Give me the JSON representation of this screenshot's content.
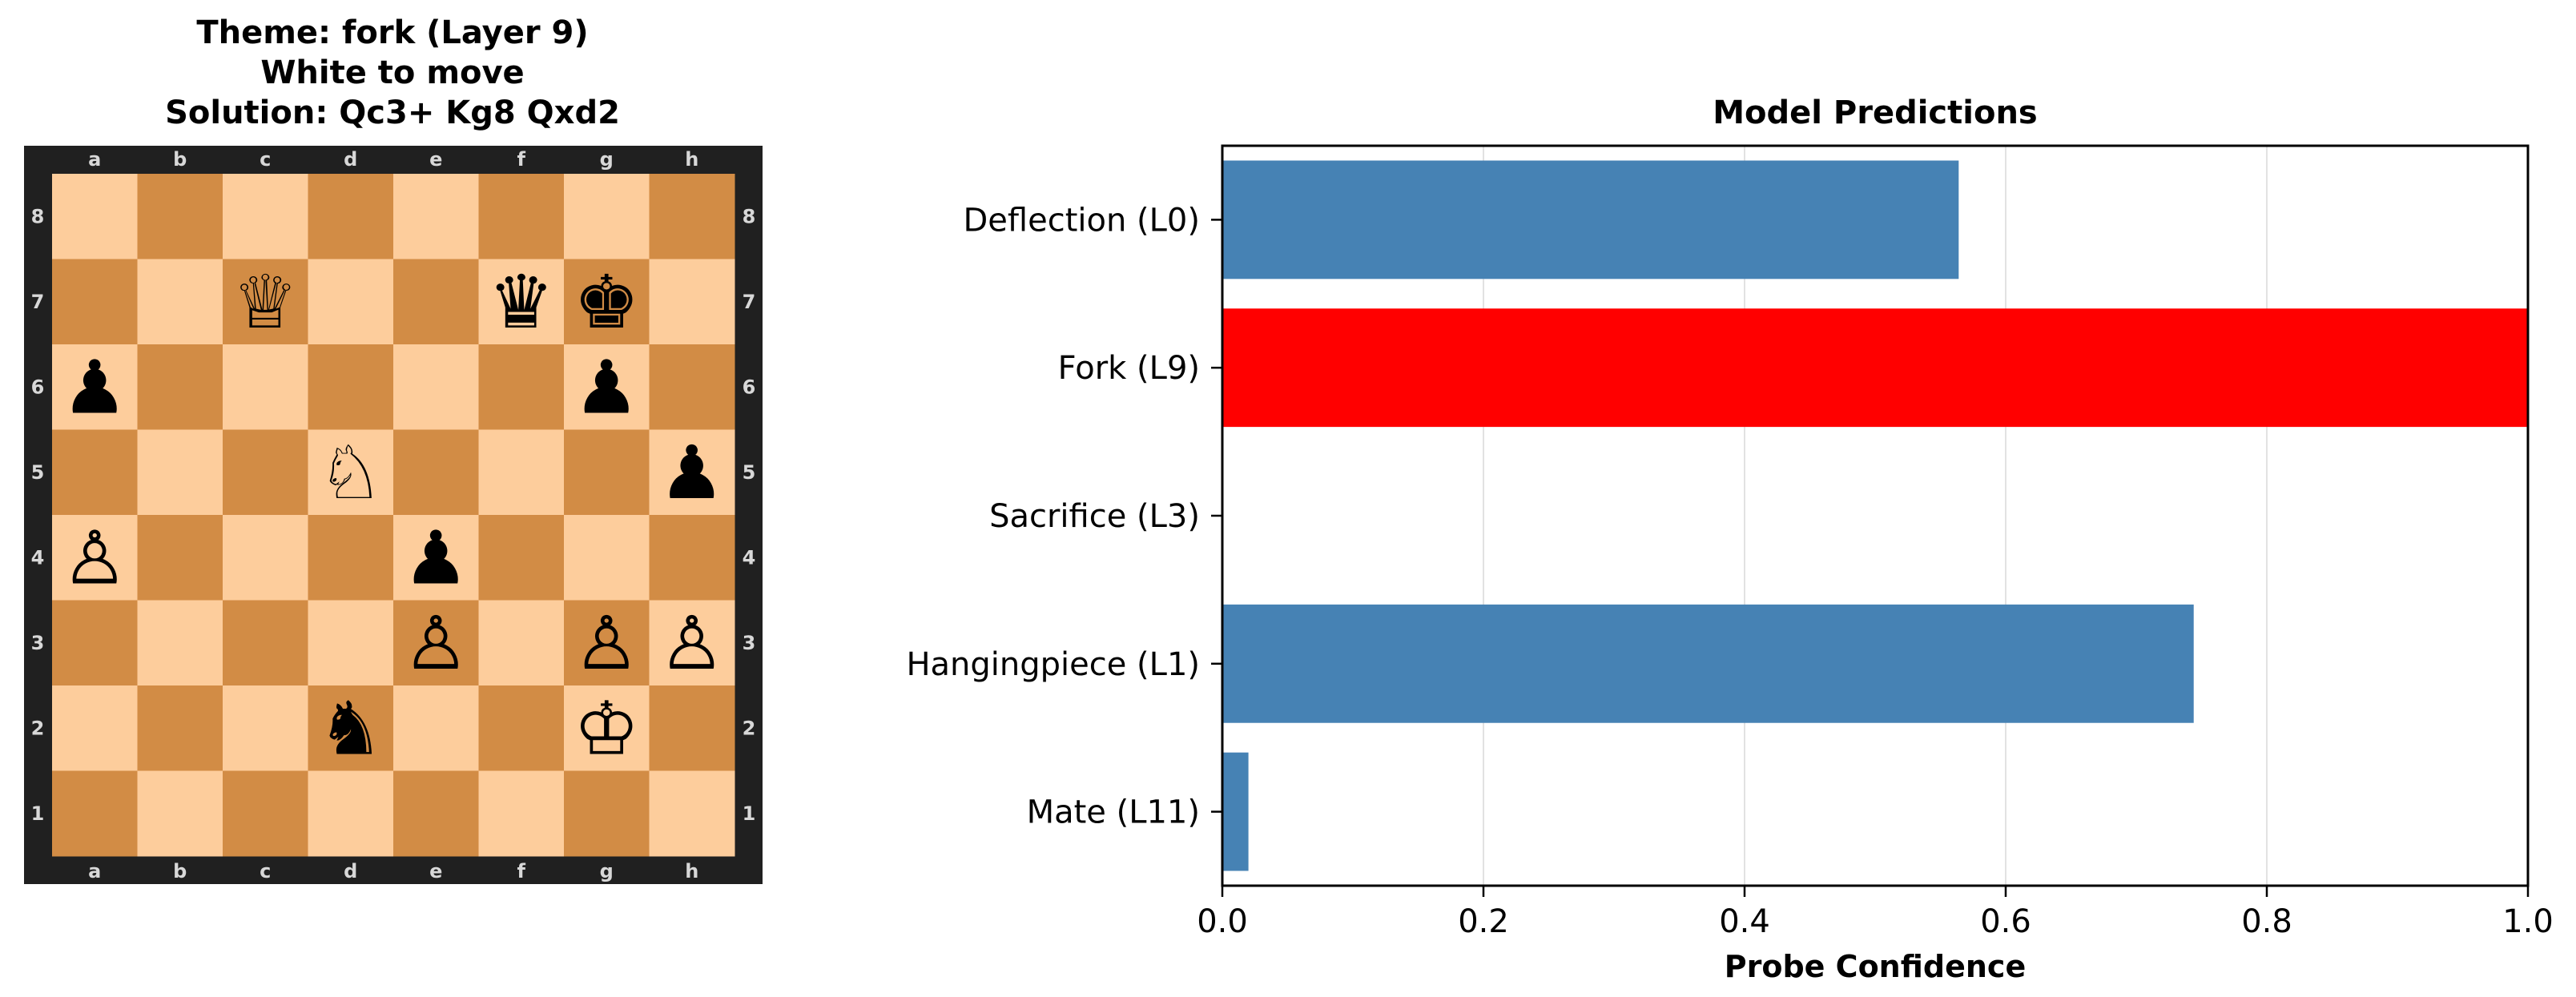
{
  "board_panel": {
    "title_lines": [
      "Theme: fork (Layer 9)",
      "White to move",
      "Solution: Qc3+ Kg8 Qxd2"
    ],
    "files": [
      "a",
      "b",
      "c",
      "d",
      "e",
      "f",
      "g",
      "h"
    ],
    "ranks": [
      "8",
      "7",
      "6",
      "5",
      "4",
      "3",
      "2",
      "1"
    ],
    "colors": {
      "light": "#fdcd9c",
      "dark": "#d28c45",
      "frame": "#202020",
      "coord": "#d8d8d8"
    },
    "pieces": [
      {
        "square": "c7",
        "color": "white",
        "type": "queen",
        "glyph": "♕"
      },
      {
        "square": "f7",
        "color": "black",
        "type": "queen",
        "glyph": "♛"
      },
      {
        "square": "g7",
        "color": "black",
        "type": "king",
        "glyph": "♚"
      },
      {
        "square": "a6",
        "color": "black",
        "type": "pawn",
        "glyph": "♟"
      },
      {
        "square": "g6",
        "color": "black",
        "type": "pawn",
        "glyph": "♟"
      },
      {
        "square": "d5",
        "color": "white",
        "type": "knight",
        "glyph": "♘"
      },
      {
        "square": "h5",
        "color": "black",
        "type": "pawn",
        "glyph": "♟"
      },
      {
        "square": "a4",
        "color": "white",
        "type": "pawn",
        "glyph": "♙"
      },
      {
        "square": "e4",
        "color": "black",
        "type": "pawn",
        "glyph": "♟"
      },
      {
        "square": "e3",
        "color": "white",
        "type": "pawn",
        "glyph": "♙"
      },
      {
        "square": "g3",
        "color": "white",
        "type": "pawn",
        "glyph": "♙"
      },
      {
        "square": "h3",
        "color": "white",
        "type": "pawn",
        "glyph": "♙"
      },
      {
        "square": "d2",
        "color": "black",
        "type": "knight",
        "glyph": "♞"
      },
      {
        "square": "g2",
        "color": "white",
        "type": "king",
        "glyph": "♔"
      }
    ]
  },
  "chart_data": {
    "type": "bar",
    "orientation": "horizontal",
    "title": "Model Predictions",
    "xlabel": "Probe Confidence",
    "ylabel": "",
    "xlim": [
      0.0,
      1.0
    ],
    "xticks": [
      "0.0",
      "0.2",
      "0.4",
      "0.6",
      "0.8",
      "1.0"
    ],
    "grid": "vertical",
    "categories": [
      "Deflection (L0)",
      "Fork (L9)",
      "Sacrifice (L3)",
      "Hangingpiece (L1)",
      "Mate (L11)"
    ],
    "values": [
      0.564,
      1.0,
      0.0,
      0.744,
      0.02
    ],
    "bar_colors": [
      "#4682b4",
      "#ff0000",
      "#4682b4",
      "#4682b4",
      "#4682b4"
    ]
  }
}
